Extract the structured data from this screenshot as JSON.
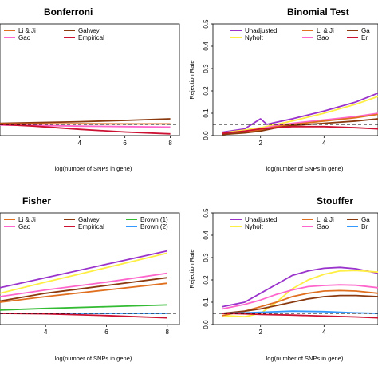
{
  "chart_data": [
    {
      "type": "line",
      "title": "Bonferroni",
      "xlabel": "log(number of SNPs in gene)",
      "ylabel": "",
      "xlim": [
        0.5,
        8.4
      ],
      "ylim": [
        0,
        0.5
      ],
      "xticks": [
        4,
        6,
        8
      ],
      "yticks": [],
      "reference_line": 0.05,
      "legend": [
        {
          "name": "Li & Ji",
          "color": "#e07020"
        },
        {
          "name": "Galwey",
          "color": "#8b3a0f"
        },
        {
          "name": "Gao",
          "color": "#ff66cc"
        },
        {
          "name": "Empirical",
          "color": "#cc1133"
        }
      ],
      "series": [
        {
          "name": "Galwey",
          "color": "#8b3a0f",
          "x": [
            0.5,
            2,
            4,
            6,
            8
          ],
          "y": [
            0.055,
            0.058,
            0.062,
            0.068,
            0.075
          ]
        },
        {
          "name": "Li & Ji",
          "color": "#e07020",
          "x": [
            0.5,
            2,
            4,
            6,
            8
          ],
          "y": [
            0.052,
            0.052,
            0.053,
            0.052,
            0.052
          ]
        },
        {
          "name": "Gao",
          "color": "#ff66cc",
          "x": [
            0.5,
            2,
            4,
            6,
            8
          ],
          "y": [
            0.047,
            0.045,
            0.042,
            0.04,
            0.038
          ]
        },
        {
          "name": "Empirical",
          "color": "#cc1133",
          "x": [
            0.5,
            2,
            4,
            6,
            8
          ],
          "y": [
            0.05,
            0.042,
            0.028,
            0.016,
            0.008
          ]
        }
      ]
    },
    {
      "type": "line",
      "title": "Binomial Test",
      "xlabel": "log(number of SNPs in gene)",
      "ylabel": "Rejection Rate",
      "xlim": [
        0.5,
        5.7
      ],
      "ylim": [
        0,
        0.5
      ],
      "xticks": [
        2,
        4
      ],
      "yticks": [
        0.0,
        0.1,
        0.2,
        0.3,
        0.4,
        0.5
      ],
      "reference_line": 0.05,
      "legend": [
        {
          "name": "Unadjusted",
          "color": "#9933cc"
        },
        {
          "name": "Li & Ji",
          "color": "#e07020"
        },
        {
          "name": "Ga",
          "color": "#8b3a0f"
        },
        {
          "name": "Nyholt",
          "color": "#ffee44"
        },
        {
          "name": "Gao",
          "color": "#ff66cc"
        },
        {
          "name": "Er",
          "color": "#cc1133"
        }
      ],
      "series": [
        {
          "name": "Unadjusted",
          "color": "#9933cc",
          "x": [
            0.8,
            1.5,
            2.0,
            2.2,
            2.5,
            3.0,
            4.0,
            5.0,
            5.7
          ],
          "y": [
            0.015,
            0.03,
            0.075,
            0.05,
            0.06,
            0.075,
            0.11,
            0.15,
            0.19
          ]
        },
        {
          "name": "Nyholt",
          "color": "#ffee44",
          "x": [
            0.8,
            1.5,
            2.0,
            2.5,
            3.0,
            4.0,
            5.0,
            5.7
          ],
          "y": [
            0.012,
            0.025,
            0.035,
            0.05,
            0.065,
            0.1,
            0.14,
            0.175
          ]
        },
        {
          "name": "Gao",
          "color": "#ff66cc",
          "x": [
            0.8,
            1.5,
            2.0,
            2.5,
            3.0,
            4.0,
            5.0,
            5.7
          ],
          "y": [
            0.01,
            0.02,
            0.03,
            0.045,
            0.055,
            0.07,
            0.085,
            0.1
          ]
        },
        {
          "name": "Li & Ji",
          "color": "#e07020",
          "x": [
            0.8,
            1.5,
            2.0,
            2.5,
            3.0,
            4.0,
            5.0,
            5.7
          ],
          "y": [
            0.005,
            0.015,
            0.025,
            0.04,
            0.05,
            0.065,
            0.08,
            0.095
          ]
        },
        {
          "name": "Ga",
          "color": "#8b3a0f",
          "x": [
            0.8,
            1.5,
            2.0,
            2.5,
            3.0,
            4.0,
            5.0,
            5.7
          ],
          "y": [
            0.005,
            0.012,
            0.02,
            0.035,
            0.045,
            0.055,
            0.065,
            0.075
          ]
        },
        {
          "name": "Er",
          "color": "#cc1133",
          "x": [
            0.8,
            1.5,
            2.0,
            2.5,
            3.0,
            4.0,
            5.0,
            5.7
          ],
          "y": [
            0.01,
            0.02,
            0.03,
            0.035,
            0.04,
            0.04,
            0.035,
            0.03
          ]
        }
      ]
    },
    {
      "type": "line",
      "title": "Fisher",
      "xlabel": "log(number of SNPs in gene)",
      "ylabel": "",
      "xlim": [
        2.5,
        8.4
      ],
      "ylim": [
        0,
        0.5
      ],
      "xticks": [
        4,
        6,
        8
      ],
      "yticks": [],
      "reference_line": 0.05,
      "legend": [
        {
          "name": "Li & Ji",
          "color": "#e07020"
        },
        {
          "name": "Galwey",
          "color": "#8b3a0f"
        },
        {
          "name": "Brown (1)",
          "color": "#33bb33"
        },
        {
          "name": "Gao",
          "color": "#ff66cc"
        },
        {
          "name": "Empirical",
          "color": "#cc1133"
        },
        {
          "name": "Brown (2)",
          "color": "#3399ff"
        }
      ],
      "series": [
        {
          "name": "Unadjusted",
          "color": "#9933cc",
          "x": [
            2.5,
            4,
            6,
            8
          ],
          "y": [
            0.165,
            0.21,
            0.27,
            0.33
          ]
        },
        {
          "name": "Nyholt",
          "color": "#ffee44",
          "x": [
            2.5,
            4,
            6,
            8
          ],
          "y": [
            0.14,
            0.19,
            0.255,
            0.32
          ]
        },
        {
          "name": "Gao",
          "color": "#ff66cc",
          "x": [
            2.5,
            4,
            6,
            8
          ],
          "y": [
            0.125,
            0.155,
            0.19,
            0.23
          ]
        },
        {
          "name": "Galwey",
          "color": "#8b3a0f",
          "x": [
            2.5,
            4,
            6,
            8
          ],
          "y": [
            0.105,
            0.14,
            0.175,
            0.21
          ]
        },
        {
          "name": "Li & Ji",
          "color": "#e07020",
          "x": [
            2.5,
            4,
            6,
            8
          ],
          "y": [
            0.1,
            0.125,
            0.155,
            0.185
          ]
        },
        {
          "name": "Brown (1)",
          "color": "#33bb33",
          "x": [
            2.5,
            4,
            6,
            8
          ],
          "y": [
            0.065,
            0.072,
            0.08,
            0.088
          ]
        },
        {
          "name": "Brown (2)",
          "color": "#3399ff",
          "x": [
            2.5,
            4,
            6,
            8
          ],
          "y": [
            0.05,
            0.05,
            0.05,
            0.05
          ]
        },
        {
          "name": "Empirical",
          "color": "#cc1133",
          "x": [
            2.5,
            4,
            6,
            8
          ],
          "y": [
            0.05,
            0.048,
            0.04,
            0.03
          ]
        }
      ]
    },
    {
      "type": "line",
      "title": "Stouffer",
      "xlabel": "log(number of SNPs in gene)",
      "ylabel": "Rejection Rate",
      "xlim": [
        0.5,
        5.7
      ],
      "ylim": [
        0,
        0.5
      ],
      "xticks": [
        2,
        4
      ],
      "yticks": [
        0.0,
        0.1,
        0.2,
        0.3,
        0.4,
        0.5
      ],
      "reference_line": 0.05,
      "legend": [
        {
          "name": "Unadjusted",
          "color": "#9933cc"
        },
        {
          "name": "Li & Ji",
          "color": "#e07020"
        },
        {
          "name": "Ga",
          "color": "#8b3a0f"
        },
        {
          "name": "Nyholt",
          "color": "#ffee44"
        },
        {
          "name": "Gao",
          "color": "#ff66cc"
        },
        {
          "name": "Br",
          "color": "#3399ff"
        }
      ],
      "series": [
        {
          "name": "Unadjusted",
          "color": "#9933cc",
          "x": [
            0.8,
            1.5,
            2.0,
            2.5,
            3.0,
            3.5,
            4.0,
            4.5,
            5.0,
            5.7
          ],
          "y": [
            0.08,
            0.1,
            0.14,
            0.18,
            0.22,
            0.24,
            0.252,
            0.256,
            0.25,
            0.23
          ]
        },
        {
          "name": "Nyholt",
          "color": "#ffee44",
          "x": [
            0.8,
            1.5,
            2.0,
            2.5,
            3.0,
            3.5,
            4.0,
            4.5,
            5.0,
            5.7
          ],
          "y": [
            0.04,
            0.035,
            0.05,
            0.1,
            0.16,
            0.2,
            0.225,
            0.24,
            0.242,
            0.235
          ]
        },
        {
          "name": "Gao",
          "color": "#ff66cc",
          "x": [
            0.8,
            1.5,
            2.0,
            2.5,
            3.0,
            3.5,
            4.0,
            4.5,
            5.0,
            5.7
          ],
          "y": [
            0.07,
            0.09,
            0.11,
            0.135,
            0.155,
            0.17,
            0.175,
            0.178,
            0.176,
            0.165
          ]
        },
        {
          "name": "Li & Ji",
          "color": "#e07020",
          "x": [
            0.8,
            1.5,
            2.0,
            2.5,
            3.0,
            3.5,
            4.0,
            4.5,
            5.0,
            5.7
          ],
          "y": [
            0.04,
            0.06,
            0.08,
            0.1,
            0.125,
            0.14,
            0.15,
            0.152,
            0.15,
            0.14
          ]
        },
        {
          "name": "Ga",
          "color": "#8b3a0f",
          "x": [
            0.8,
            1.5,
            2.0,
            2.5,
            3.0,
            3.5,
            4.0,
            4.5,
            5.0,
            5.7
          ],
          "y": [
            0.05,
            0.06,
            0.07,
            0.085,
            0.1,
            0.115,
            0.125,
            0.13,
            0.13,
            0.125
          ]
        },
        {
          "name": "Br",
          "color": "#3399ff",
          "x": [
            0.8,
            1.5,
            2.0,
            3.0,
            4.0,
            5.0,
            5.7
          ],
          "y": [
            0.05,
            0.052,
            0.055,
            0.06,
            0.058,
            0.052,
            0.05
          ]
        },
        {
          "name": "Empirical",
          "color": "#cc1133",
          "x": [
            0.8,
            1.5,
            2.0,
            3.0,
            4.0,
            5.0,
            5.7
          ],
          "y": [
            0.05,
            0.048,
            0.045,
            0.042,
            0.038,
            0.034,
            0.03
          ]
        }
      ]
    }
  ]
}
